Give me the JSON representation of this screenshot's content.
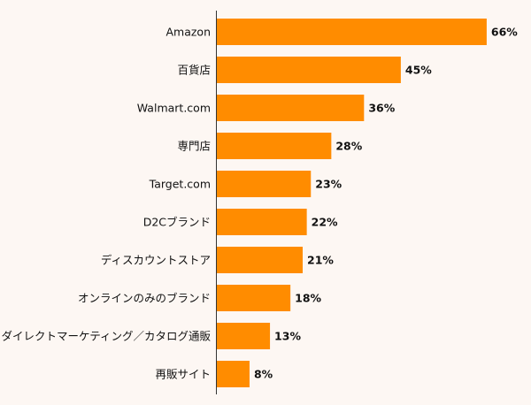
{
  "chart_data": {
    "type": "bar",
    "orientation": "horizontal",
    "title": "",
    "xlabel": "",
    "ylabel": "",
    "value_suffix": "%",
    "xlim": [
      0,
      70
    ],
    "grid": false,
    "legend": "none",
    "bar_color": "#ff8c00",
    "categories": [
      "Amazon",
      "百貨店",
      "Walmart.com",
      "専門店",
      "Target.com",
      "D2Cブランド",
      "ディスカウントストア",
      "オンラインのみのブランド",
      "ダイレクトマーケティング／カタログ通販",
      "再販サイト"
    ],
    "values": [
      66,
      45,
      36,
      28,
      23,
      22,
      21,
      18,
      13,
      8
    ]
  }
}
